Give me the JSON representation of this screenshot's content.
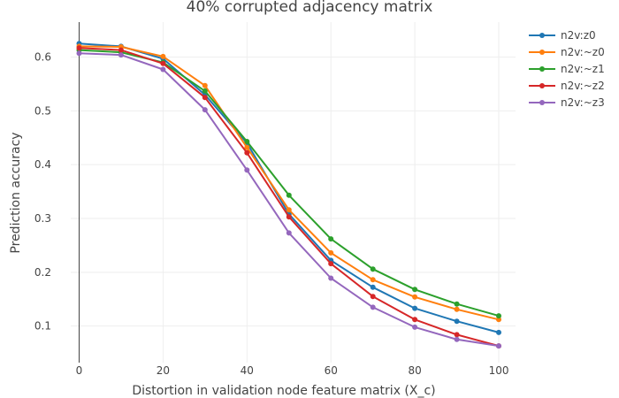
{
  "chart_data": {
    "type": "line",
    "title": "40% corrupted adjacency matrix",
    "xlabel": "Distortion in validation node feature matrix (X_c)",
    "ylabel": "Prediction accuracy",
    "x": [
      0,
      10,
      20,
      30,
      40,
      50,
      60,
      70,
      80,
      90,
      100
    ],
    "xlim": [
      -2,
      104
    ],
    "ylim": [
      0.032,
      0.665
    ],
    "xticks": [
      0,
      20,
      40,
      60,
      80,
      100
    ],
    "yticks": [
      0.1,
      0.2,
      0.3,
      0.4,
      0.5,
      0.6
    ],
    "x_tick_labels": [
      "0",
      "20",
      "40",
      "60",
      "80",
      "100"
    ],
    "y_tick_labels": [
      "0.1",
      "0.2",
      "0.3",
      "0.4",
      "0.5",
      "0.6"
    ],
    "grid": true,
    "legend_position": "top-right",
    "series": [
      {
        "name": "n2v:z0",
        "color": "#1f77b4",
        "values": [
          0.625,
          0.62,
          0.597,
          0.53,
          0.44,
          0.308,
          0.222,
          0.172,
          0.133,
          0.109,
          0.088
        ]
      },
      {
        "name": "n2v:~z0",
        "color": "#ff7f0e",
        "values": [
          0.62,
          0.619,
          0.601,
          0.547,
          0.432,
          0.316,
          0.236,
          0.186,
          0.154,
          0.131,
          0.112
        ]
      },
      {
        "name": "n2v:~z1",
        "color": "#2ca02c",
        "values": [
          0.613,
          0.609,
          0.59,
          0.537,
          0.443,
          0.343,
          0.262,
          0.206,
          0.168,
          0.141,
          0.119
        ]
      },
      {
        "name": "n2v:~z2",
        "color": "#d62728",
        "values": [
          0.617,
          0.613,
          0.588,
          0.525,
          0.422,
          0.303,
          0.216,
          0.155,
          0.112,
          0.084,
          0.063
        ]
      },
      {
        "name": "n2v:~z3",
        "color": "#9467bd",
        "values": [
          0.607,
          0.604,
          0.577,
          0.502,
          0.39,
          0.273,
          0.189,
          0.135,
          0.098,
          0.075,
          0.063
        ]
      }
    ]
  }
}
